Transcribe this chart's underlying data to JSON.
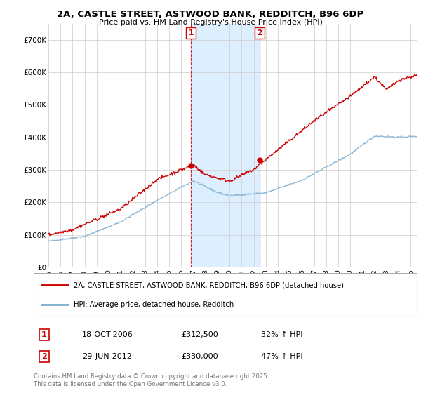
{
  "title_line1": "2A, CASTLE STREET, ASTWOOD BANK, REDDITCH, B96 6DP",
  "title_line2": "Price paid vs. HM Land Registry's House Price Index (HPI)",
  "ylim": [
    0,
    750000
  ],
  "yticks": [
    0,
    100000,
    200000,
    300000,
    400000,
    500000,
    600000,
    700000
  ],
  "ytick_labels": [
    "£0",
    "£100K",
    "£200K",
    "£300K",
    "£400K",
    "£500K",
    "£600K",
    "£700K"
  ],
  "x_start_year": 1995,
  "x_end_year": 2025,
  "sale1_date": "18-OCT-2006",
  "sale1_price": 312500,
  "sale1_hpi": "32% ↑ HPI",
  "sale1_x": 2006.79,
  "sale2_date": "29-JUN-2012",
  "sale2_price": 330000,
  "sale2_hpi": "47% ↑ HPI",
  "sale2_x": 2012.49,
  "legend_label_red": "2A, CASTLE STREET, ASTWOOD BANK, REDDITCH, B96 6DP (detached house)",
  "legend_label_blue": "HPI: Average price, detached house, Redditch",
  "footnote_line1": "Contains HM Land Registry data © Crown copyright and database right 2025.",
  "footnote_line2": "This data is licensed under the Open Government Licence v3.0.",
  "red_color": "#cc0000",
  "blue_color": "#7aabcf",
  "highlight_color": "#ddeeff",
  "grid_color": "#cccccc",
  "background_color": "#ffffff",
  "sale1_label_price": "£312,500",
  "sale2_label_price": "£330,000"
}
